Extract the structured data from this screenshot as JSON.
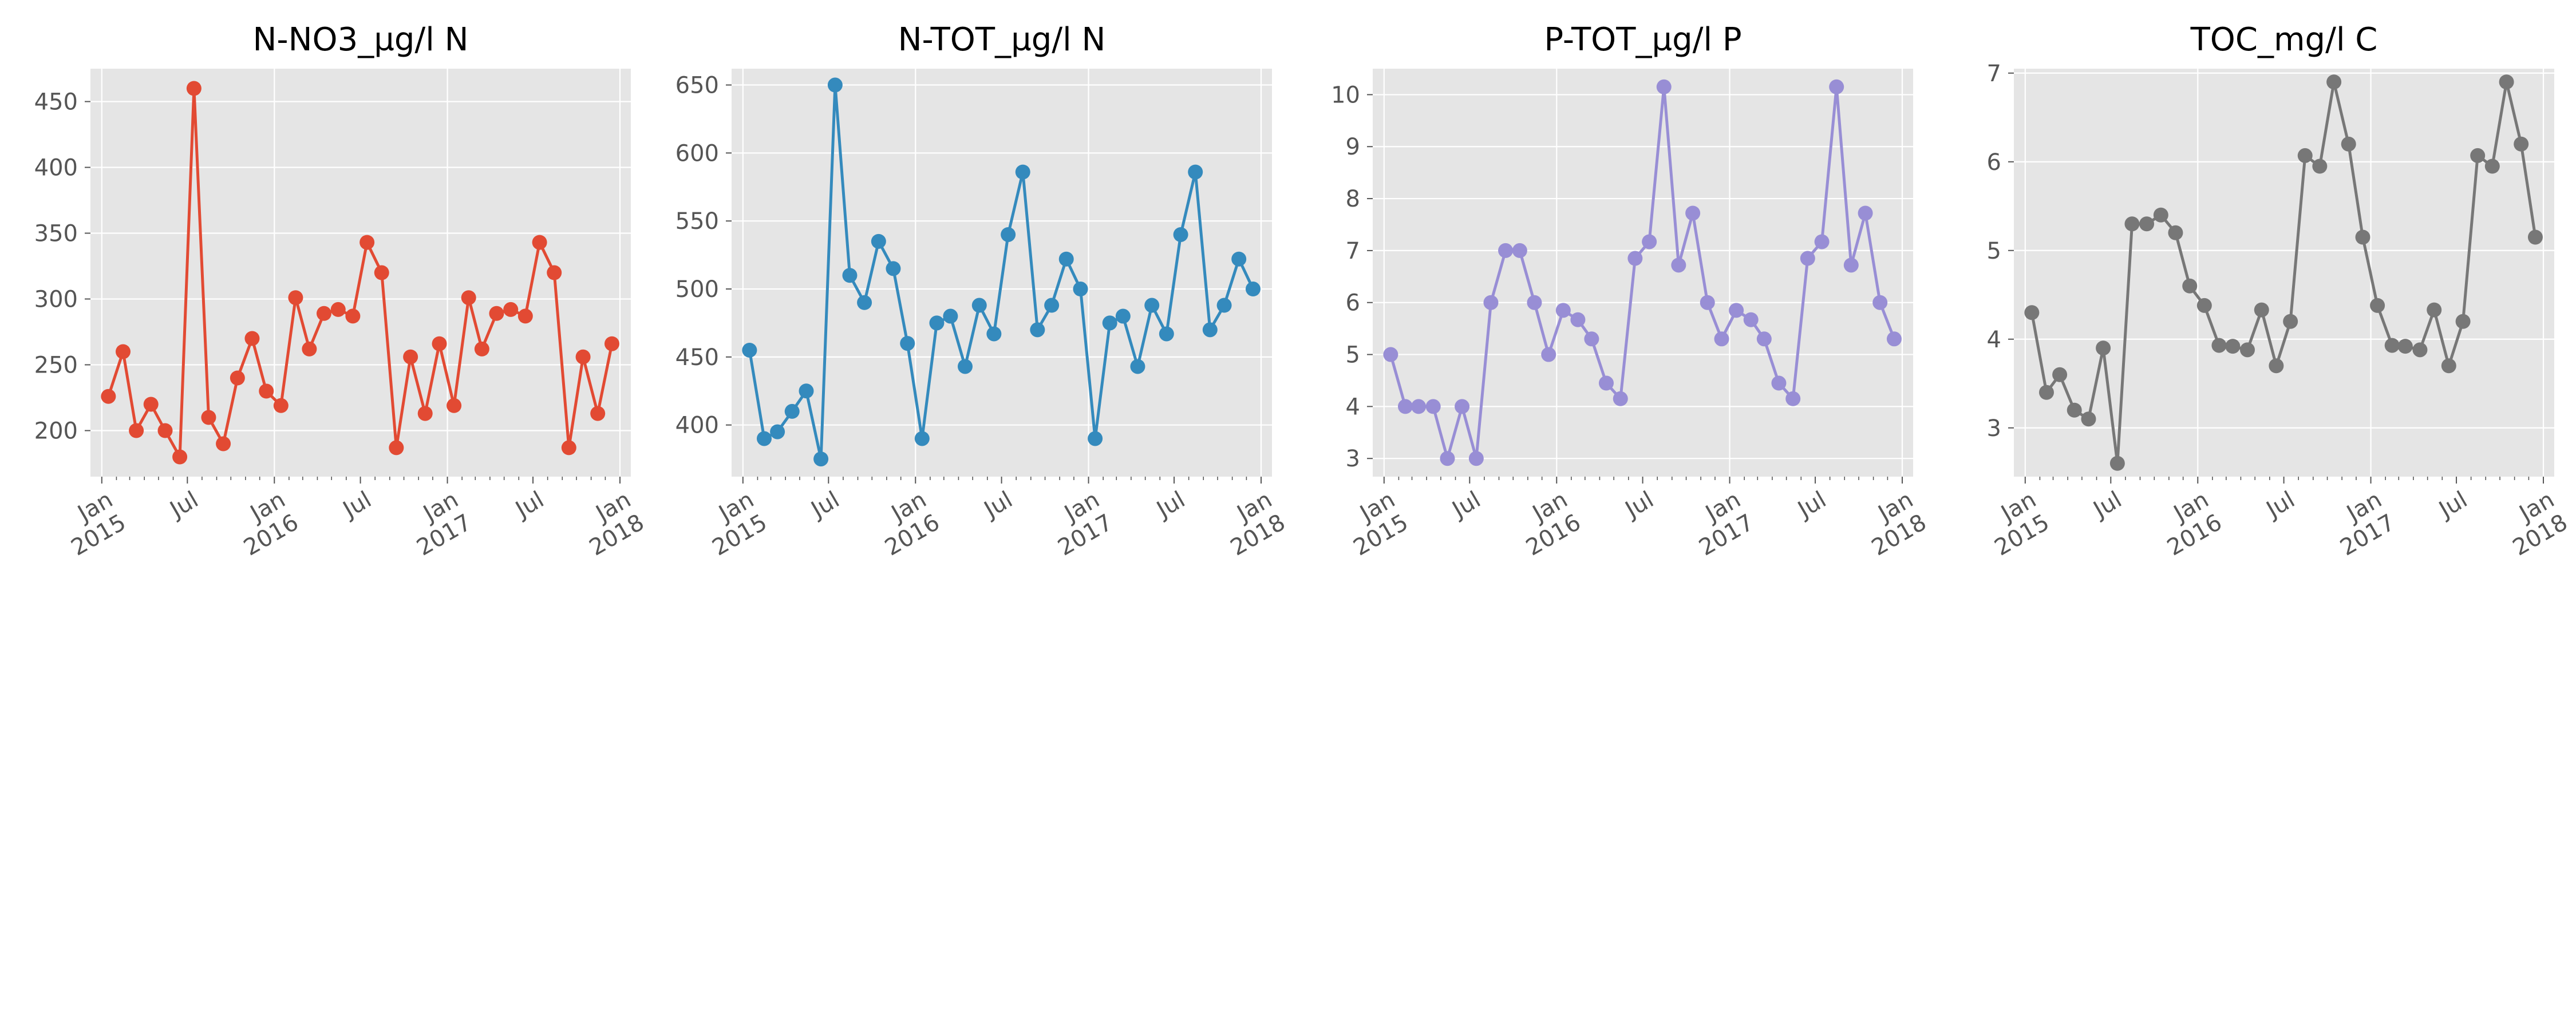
{
  "chart_data": [
    {
      "type": "line",
      "title": "N-NO3_µg/l N",
      "color": "#E24A33",
      "x_range": [
        "2014-12-08",
        "2018-01-24"
      ],
      "ylim": [
        165,
        475
      ],
      "y_ticks": [
        200,
        250,
        300,
        350,
        400,
        450
      ],
      "grid": true,
      "x": [
        "2015-01-15",
        "2015-02-15",
        "2015-03-15",
        "2015-04-15",
        "2015-05-15",
        "2015-06-15",
        "2015-07-15",
        "2015-08-15",
        "2015-09-15",
        "2015-10-15",
        "2015-11-15",
        "2015-12-15",
        "2016-01-15",
        "2016-02-15",
        "2016-03-15",
        "2016-04-15",
        "2016-05-15",
        "2016-06-15",
        "2016-07-15",
        "2016-08-15",
        "2016-09-15",
        "2016-10-15",
        "2016-11-15",
        "2016-12-15",
        "2017-01-15",
        "2017-02-15",
        "2017-03-15",
        "2017-04-15",
        "2017-05-15",
        "2017-06-15",
        "2017-07-15",
        "2017-08-15",
        "2017-09-15",
        "2017-10-15",
        "2017-11-15",
        "2017-12-15"
      ],
      "values": [
        226,
        260,
        200,
        220,
        200,
        180,
        460,
        210,
        190,
        240,
        270,
        230,
        219,
        301,
        262,
        289,
        292,
        287,
        343,
        320,
        187,
        256,
        213,
        266,
        219,
        301,
        262,
        289,
        292,
        287,
        343,
        320,
        187,
        256,
        213,
        266
      ]
    },
    {
      "type": "line",
      "title": "N-TOT_µg/l N",
      "color": "#348ABD",
      "x_range": [
        "2014-12-08",
        "2018-01-24"
      ],
      "ylim": [
        362,
        662
      ],
      "y_ticks": [
        400,
        450,
        500,
        550,
        600,
        650
      ],
      "grid": true,
      "x": [
        "2015-01-15",
        "2015-02-15",
        "2015-03-15",
        "2015-04-15",
        "2015-05-15",
        "2015-06-15",
        "2015-07-15",
        "2015-08-15",
        "2015-09-15",
        "2015-10-15",
        "2015-11-15",
        "2015-12-15",
        "2016-01-15",
        "2016-02-15",
        "2016-03-15",
        "2016-04-15",
        "2016-05-15",
        "2016-06-15",
        "2016-07-15",
        "2016-08-15",
        "2016-09-15",
        "2016-10-15",
        "2016-11-15",
        "2016-12-15",
        "2017-01-15",
        "2017-02-15",
        "2017-03-15",
        "2017-04-15",
        "2017-05-15",
        "2017-06-15",
        "2017-07-15",
        "2017-08-15",
        "2017-09-15",
        "2017-10-15",
        "2017-11-15",
        "2017-12-15"
      ],
      "values": [
        455,
        390,
        395,
        410,
        425,
        375,
        650,
        510,
        490,
        535,
        515,
        460,
        390,
        475,
        480,
        443,
        488,
        467,
        540,
        586,
        470,
        488,
        522,
        500,
        390,
        475,
        480,
        443,
        488,
        467,
        540,
        586,
        470,
        488,
        522,
        500
      ]
    },
    {
      "type": "line",
      "title": "P-TOT_µg/l P",
      "color": "#988ED5",
      "x_range": [
        "2014-12-08",
        "2018-01-24"
      ],
      "ylim": [
        2.65,
        10.5
      ],
      "y_ticks": [
        3,
        4,
        5,
        6,
        7,
        8,
        9,
        10
      ],
      "grid": true,
      "x": [
        "2015-01-15",
        "2015-02-15",
        "2015-03-15",
        "2015-04-15",
        "2015-05-15",
        "2015-06-15",
        "2015-07-15",
        "2015-08-15",
        "2015-09-15",
        "2015-10-15",
        "2015-11-15",
        "2015-12-15",
        "2016-01-15",
        "2016-02-15",
        "2016-03-15",
        "2016-04-15",
        "2016-05-15",
        "2016-06-15",
        "2016-07-15",
        "2016-08-15",
        "2016-09-15",
        "2016-10-15",
        "2016-11-15",
        "2016-12-15",
        "2017-01-15",
        "2017-02-15",
        "2017-03-15",
        "2017-04-15",
        "2017-05-15",
        "2017-06-15",
        "2017-07-15",
        "2017-08-15",
        "2017-09-15",
        "2017-10-15",
        "2017-11-15",
        "2017-12-15"
      ],
      "values": [
        5.0,
        4.0,
        4.0,
        4.0,
        3.0,
        4.0,
        3.0,
        6.0,
        7.0,
        7.0,
        6.0,
        5.0,
        5.85,
        5.67,
        5.3,
        4.45,
        4.15,
        6.85,
        7.17,
        10.15,
        6.72,
        7.72,
        6.0,
        5.3,
        5.85,
        5.67,
        5.3,
        4.45,
        4.15,
        6.85,
        7.17,
        10.15,
        6.72,
        7.72,
        6.0,
        5.3
      ]
    },
    {
      "type": "line",
      "title": "TOC_mg/l C",
      "color": "#777777",
      "x_range": [
        "2014-12-08",
        "2018-01-24"
      ],
      "ylim": [
        2.45,
        7.05
      ],
      "y_ticks": [
        3,
        4,
        5,
        6,
        7
      ],
      "grid": true,
      "x": [
        "2015-01-15",
        "2015-02-15",
        "2015-03-15",
        "2015-04-15",
        "2015-05-15",
        "2015-06-15",
        "2015-07-15",
        "2015-08-15",
        "2015-09-15",
        "2015-10-15",
        "2015-11-15",
        "2015-12-15",
        "2016-01-15",
        "2016-02-15",
        "2016-03-15",
        "2016-04-15",
        "2016-05-15",
        "2016-06-15",
        "2016-07-15",
        "2016-08-15",
        "2016-09-15",
        "2016-10-15",
        "2016-11-15",
        "2016-12-15",
        "2017-01-15",
        "2017-02-15",
        "2017-03-15",
        "2017-04-15",
        "2017-05-15",
        "2017-06-15",
        "2017-07-15",
        "2017-08-15",
        "2017-09-15",
        "2017-10-15",
        "2017-11-15",
        "2017-12-15"
      ],
      "values": [
        4.3,
        3.4,
        3.6,
        3.2,
        3.1,
        3.9,
        2.6,
        5.3,
        5.3,
        5.4,
        5.2,
        4.6,
        4.38,
        3.93,
        3.92,
        3.88,
        4.33,
        3.7,
        4.2,
        6.07,
        5.95,
        6.9,
        6.2,
        5.15,
        4.38,
        3.93,
        3.92,
        3.88,
        4.33,
        3.7,
        4.2,
        6.07,
        5.95,
        6.9,
        6.2,
        5.15
      ]
    }
  ],
  "x_tick_labels": [
    {
      "date": "2015-01-01",
      "lines": [
        "Jan",
        "2015"
      ]
    },
    {
      "date": "2015-07-01",
      "lines": [
        "Jul"
      ]
    },
    {
      "date": "2016-01-01",
      "lines": [
        "Jan",
        "2016"
      ]
    },
    {
      "date": "2016-07-01",
      "lines": [
        "Jul"
      ]
    },
    {
      "date": "2017-01-01",
      "lines": [
        "Jan",
        "2017"
      ]
    },
    {
      "date": "2017-07-01",
      "lines": [
        "Jul"
      ]
    },
    {
      "date": "2018-01-01",
      "lines": [
        "Jan",
        "2018"
      ]
    }
  ],
  "style": {
    "axes_background": "#E5E5E5",
    "grid_color": "#FFFFFF",
    "tick_color": "#555555"
  }
}
